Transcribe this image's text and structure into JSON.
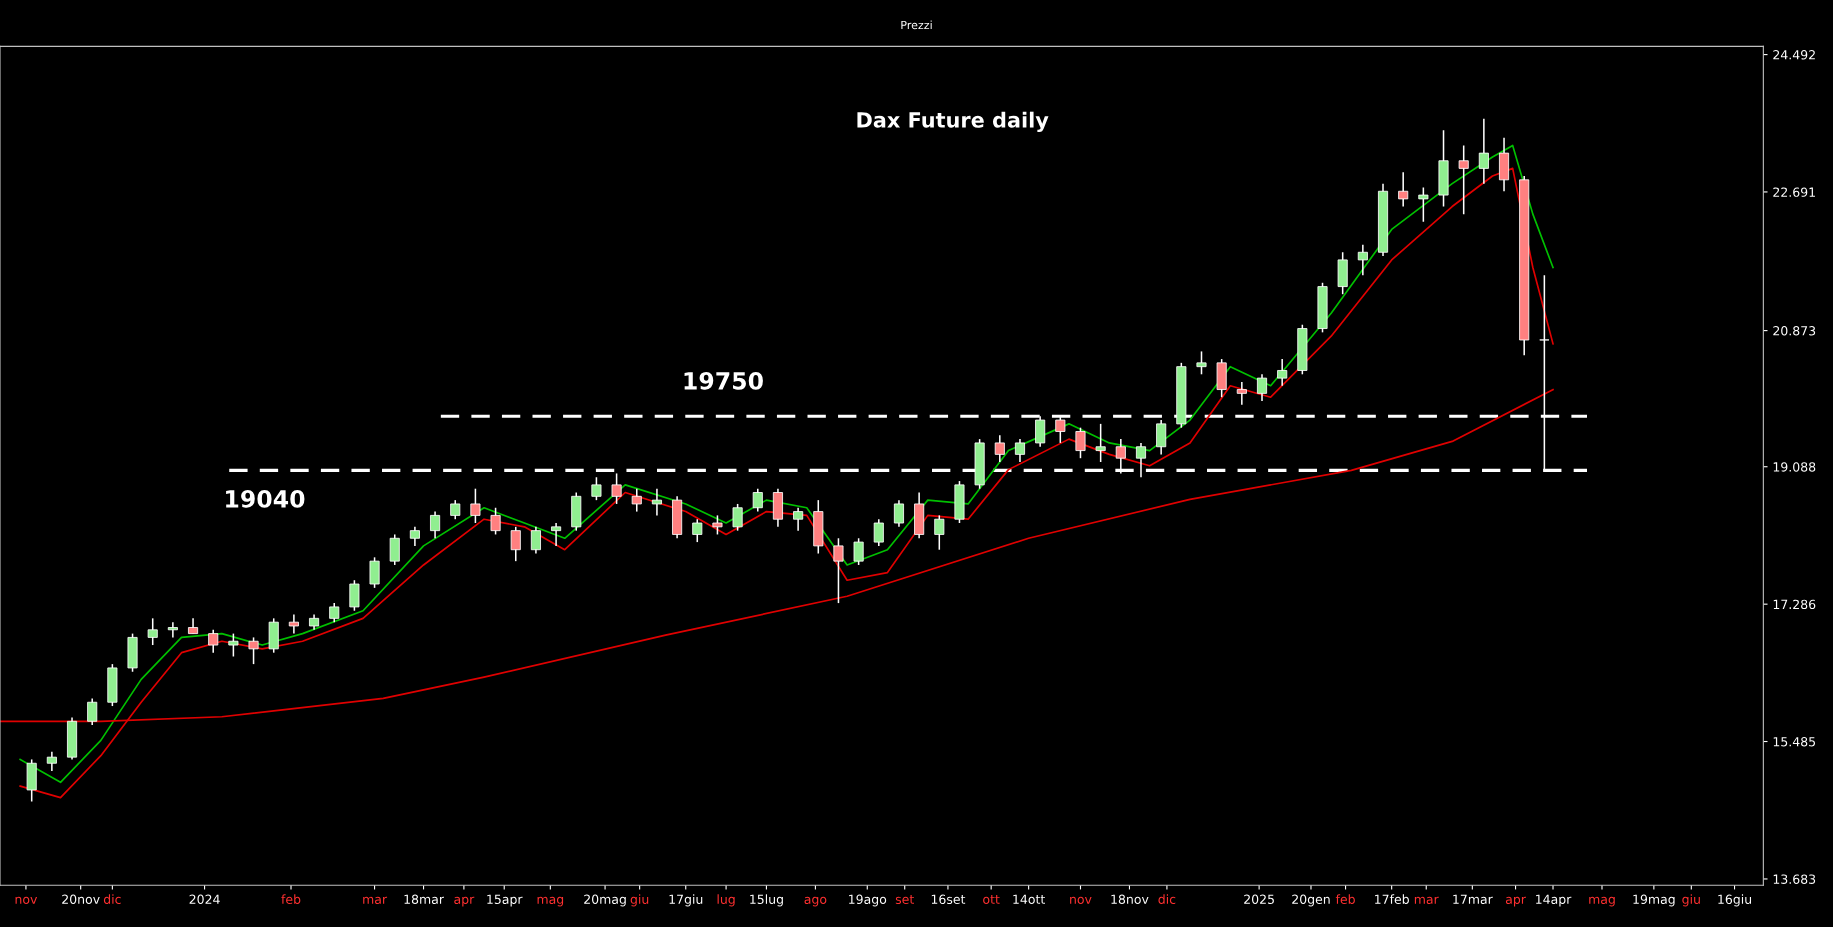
{
  "chart_data": {
    "type": "candlestick",
    "title": "Dax Future daily",
    "annotations": [
      "Prezzi"
    ],
    "x": [
      "2023-11-03",
      "2023-11-10",
      "2023-11-17",
      "2023-11-24",
      "2023-12-01",
      "2023-12-08",
      "2023-12-15",
      "2023-12-22",
      "2023-12-29",
      "2024-01-05",
      "2024-01-12",
      "2024-01-19",
      "2024-01-26",
      "2024-02-02",
      "2024-02-09",
      "2024-02-16",
      "2024-02-23",
      "2024-03-01",
      "2024-03-08",
      "2024-03-15",
      "2024-03-22",
      "2024-03-29",
      "2024-04-05",
      "2024-04-12",
      "2024-04-19",
      "2024-04-26",
      "2024-05-03",
      "2024-05-10",
      "2024-05-17",
      "2024-05-24",
      "2024-05-31",
      "2024-06-07",
      "2024-06-14",
      "2024-06-21",
      "2024-06-28",
      "2024-07-05",
      "2024-07-12",
      "2024-07-19",
      "2024-07-26",
      "2024-08-02",
      "2024-08-09",
      "2024-08-16",
      "2024-08-23",
      "2024-08-30",
      "2024-09-06",
      "2024-09-13",
      "2024-09-20",
      "2024-09-27",
      "2024-10-04",
      "2024-10-11",
      "2024-10-18",
      "2024-10-25",
      "2024-11-01",
      "2024-11-08",
      "2024-11-15",
      "2024-11-22",
      "2024-11-29",
      "2024-12-06",
      "2024-12-13",
      "2024-12-20",
      "2024-12-27",
      "2025-01-03",
      "2025-01-10",
      "2025-01-17",
      "2025-01-24",
      "2025-01-31",
      "2025-02-07",
      "2025-02-14",
      "2025-02-21",
      "2025-02-28",
      "2025-03-07",
      "2025-03-14",
      "2025-03-21",
      "2025-03-28",
      "2025-04-04",
      "2025-04-11"
    ],
    "ohlc": [
      [
        14850,
        15250,
        14700,
        15200
      ],
      [
        15200,
        15350,
        15100,
        15280
      ],
      [
        15280,
        15800,
        15250,
        15750
      ],
      [
        15750,
        16050,
        15700,
        16000
      ],
      [
        16000,
        16500,
        15950,
        16450
      ],
      [
        16450,
        16900,
        16400,
        16850
      ],
      [
        16850,
        17100,
        16750,
        16950
      ],
      [
        16950,
        17050,
        16850,
        16980
      ],
      [
        16980,
        17100,
        16900,
        16900
      ],
      [
        16900,
        16950,
        16650,
        16750
      ],
      [
        16750,
        16900,
        16600,
        16800
      ],
      [
        16800,
        16850,
        16500,
        16700
      ],
      [
        16700,
        17100,
        16650,
        17050
      ],
      [
        17050,
        17150,
        16900,
        17000
      ],
      [
        17000,
        17150,
        16950,
        17100
      ],
      [
        17100,
        17300,
        17050,
        17250
      ],
      [
        17250,
        17600,
        17200,
        17550
      ],
      [
        17550,
        17900,
        17500,
        17850
      ],
      [
        17850,
        18200,
        17800,
        18150
      ],
      [
        18150,
        18300,
        18050,
        18250
      ],
      [
        18250,
        18500,
        18150,
        18450
      ],
      [
        18450,
        18650,
        18400,
        18600
      ],
      [
        18600,
        18800,
        18350,
        18450
      ],
      [
        18450,
        18550,
        18200,
        18250
      ],
      [
        18250,
        18300,
        17850,
        18000
      ],
      [
        18000,
        18300,
        17950,
        18250
      ],
      [
        18250,
        18350,
        18050,
        18300
      ],
      [
        18300,
        18750,
        18250,
        18700
      ],
      [
        18700,
        18950,
        18650,
        18850
      ],
      [
        18850,
        19000,
        18600,
        18700
      ],
      [
        18700,
        18800,
        18500,
        18600
      ],
      [
        18600,
        18800,
        18450,
        18650
      ],
      [
        18650,
        18700,
        18150,
        18200
      ],
      [
        18200,
        18400,
        18100,
        18350
      ],
      [
        18350,
        18450,
        18200,
        18300
      ],
      [
        18300,
        18600,
        18250,
        18550
      ],
      [
        18550,
        18800,
        18500,
        18750
      ],
      [
        18750,
        18800,
        18300,
        18400
      ],
      [
        18400,
        18550,
        18250,
        18500
      ],
      [
        18500,
        18650,
        17950,
        18050
      ],
      [
        18050,
        18150,
        17300,
        17850
      ],
      [
        17850,
        18150,
        17800,
        18100
      ],
      [
        18100,
        18400,
        18050,
        18350
      ],
      [
        18350,
        18650,
        18300,
        18600
      ],
      [
        18600,
        18750,
        18150,
        18200
      ],
      [
        18200,
        18450,
        18000,
        18400
      ],
      [
        18400,
        18900,
        18350,
        18850
      ],
      [
        18850,
        19450,
        18800,
        19400
      ],
      [
        19400,
        19500,
        19150,
        19250
      ],
      [
        19250,
        19450,
        19150,
        19400
      ],
      [
        19400,
        19750,
        19350,
        19700
      ],
      [
        19700,
        19750,
        19400,
        19550
      ],
      [
        19550,
        19600,
        19200,
        19300
      ],
      [
        19300,
        19650,
        19150,
        19350
      ],
      [
        19350,
        19450,
        19000,
        19200
      ],
      [
        19200,
        19400,
        18950,
        19350
      ],
      [
        19350,
        19700,
        19250,
        19650
      ],
      [
        19650,
        20450,
        19600,
        20400
      ],
      [
        20400,
        20600,
        20300,
        20450
      ],
      [
        20450,
        20500,
        20000,
        20100
      ],
      [
        20100,
        20200,
        19900,
        20050
      ],
      [
        20050,
        20300,
        19950,
        20250
      ],
      [
        20250,
        20500,
        20150,
        20350
      ],
      [
        20350,
        20950,
        20300,
        20900
      ],
      [
        20900,
        21500,
        20850,
        21450
      ],
      [
        21450,
        21900,
        21350,
        21800
      ],
      [
        21800,
        22000,
        21600,
        21900
      ],
      [
        21900,
        22800,
        21850,
        22700
      ],
      [
        22700,
        22950,
        22500,
        22600
      ],
      [
        22600,
        22750,
        22300,
        22650
      ],
      [
        22650,
        23500,
        22500,
        23100
      ],
      [
        23100,
        23300,
        22400,
        23000
      ],
      [
        23000,
        23650,
        22800,
        23200
      ],
      [
        23200,
        23400,
        22700,
        22850
      ],
      [
        22850,
        22900,
        20550,
        20750
      ],
      [
        20750,
        21600,
        19040,
        20750
      ]
    ],
    "colors": [
      "#90ee90",
      "#90ee90",
      "#90ee90",
      "#90ee90",
      "#90ee90",
      "#90ee90",
      "#90ee90",
      "#90ee90",
      "#ff8080",
      "#ff8080",
      "#90ee90",
      "#ff8080",
      "#90ee90",
      "#ff8080",
      "#90ee90",
      "#90ee90",
      "#90ee90",
      "#90ee90",
      "#90ee90",
      "#90ee90",
      "#90ee90",
      "#90ee90",
      "#ff8080",
      "#ff8080",
      "#ff8080",
      "#90ee90",
      "#90ee90",
      "#90ee90",
      "#90ee90",
      "#ff8080",
      "#ff8080",
      "#90ee90",
      "#ff8080",
      "#90ee90",
      "#ff8080",
      "#90ee90",
      "#90ee90",
      "#ff8080",
      "#90ee90",
      "#ff8080",
      "#ff8080",
      "#90ee90",
      "#90ee90",
      "#90ee90",
      "#ff8080",
      "#90ee90",
      "#90ee90",
      "#90ee90",
      "#ff8080",
      "#90ee90",
      "#90ee90",
      "#ff8080",
      "#ff8080",
      "#90ee90",
      "#ff8080",
      "#90ee90",
      "#90ee90",
      "#90ee90",
      "#90ee90",
      "#ff8080",
      "#ff8080",
      "#90ee90",
      "#90ee90",
      "#90ee90",
      "#90ee90",
      "#90ee90",
      "#90ee90",
      "#90ee90",
      "#ff8080",
      "#90ee90",
      "#90ee90",
      "#ff8080",
      "#90ee90",
      "#ff8080",
      "#ff8080",
      "#90ee90"
    ],
    "series": [
      {
        "type": "line",
        "color": "#00c000",
        "x": [
          "2023-10-30",
          "2023-11-13",
          "2023-11-27",
          "2023-12-11",
          "2023-12-25",
          "2024-01-08",
          "2024-01-22",
          "2024-02-05",
          "2024-02-26",
          "2024-03-18",
          "2024-04-08",
          "2024-04-22",
          "2024-05-06",
          "2024-05-27",
          "2024-06-17",
          "2024-07-01",
          "2024-07-15",
          "2024-07-29",
          "2024-08-12",
          "2024-08-26",
          "2024-09-09",
          "2024-09-23",
          "2024-10-07",
          "2024-10-28",
          "2024-11-11",
          "2024-11-25",
          "2024-12-09",
          "2024-12-23",
          "2025-01-06",
          "2025-01-27",
          "2025-02-17",
          "2025-03-10",
          "2025-03-24",
          "2025-03-31",
          "2025-04-07",
          "2025-04-14"
        ],
        "values": [
          15250,
          14950,
          15500,
          16300,
          16850,
          16900,
          16750,
          16900,
          17200,
          18050,
          18550,
          18350,
          18150,
          18850,
          18600,
          18350,
          18650,
          18550,
          17800,
          18000,
          18650,
          18600,
          19300,
          19650,
          19400,
          19300,
          19700,
          20400,
          20150,
          21100,
          22200,
          22800,
          23150,
          23300,
          22400,
          21700
        ]
      },
      {
        "type": "line",
        "color": "#e00000",
        "x": [
          "2023-10-30",
          "2023-11-13",
          "2023-11-27",
          "2023-12-11",
          "2023-12-25",
          "2024-01-08",
          "2024-01-22",
          "2024-02-05",
          "2024-02-26",
          "2024-03-18",
          "2024-04-08",
          "2024-04-22",
          "2024-05-06",
          "2024-05-27",
          "2024-06-17",
          "2024-07-01",
          "2024-07-15",
          "2024-07-29",
          "2024-08-12",
          "2024-08-26",
          "2024-09-09",
          "2024-09-23",
          "2024-10-07",
          "2024-10-28",
          "2024-11-11",
          "2024-11-25",
          "2024-12-09",
          "2024-12-23",
          "2025-01-06",
          "2025-01-27",
          "2025-02-17",
          "2025-03-10",
          "2025-03-24",
          "2025-03-31",
          "2025-04-07",
          "2025-04-14"
        ],
        "values": [
          14900,
          14750,
          15300,
          16000,
          16650,
          16800,
          16700,
          16800,
          17100,
          17800,
          18400,
          18300,
          18000,
          18750,
          18500,
          18200,
          18500,
          18450,
          17600,
          17700,
          18450,
          18400,
          19050,
          19450,
          19250,
          19100,
          19400,
          20150,
          20000,
          20800,
          21800,
          22500,
          22900,
          23000,
          21700,
          20700
        ]
      },
      {
        "type": "line",
        "color": "#e00000",
        "x": [
          "2023-10-23",
          "2023-11-27",
          "2024-01-08",
          "2024-03-04",
          "2024-04-08",
          "2024-06-10",
          "2024-08-12",
          "2024-10-14",
          "2024-12-09",
          "2025-02-03",
          "2025-03-10",
          "2025-04-14"
        ],
        "values": [
          15750,
          15750,
          15810,
          16050,
          16330,
          16880,
          17390,
          18150,
          18660,
          19040,
          19420,
          20100
        ]
      }
    ],
    "ref_lines": [
      {
        "axis": "y",
        "value": 19750,
        "label": "19750",
        "color": "#ffffff",
        "line_style": "dashed"
      },
      {
        "axis": "y",
        "value": 19040,
        "label": "19040",
        "color": "#ffffff",
        "line_style": "dashed"
      }
    ],
    "xlim": [
      "2023-10-23",
      "2025-06-26"
    ],
    "xticks": [
      {
        "value": "2023-11-01",
        "label": "nov"
      },
      {
        "value": "2023-11-20",
        "label": "20nov"
      },
      {
        "value": "2023-12-01",
        "label": "dic"
      },
      {
        "value": "2024-01-02",
        "label": "2024"
      },
      {
        "value": "2024-02-01",
        "label": "feb"
      },
      {
        "value": "2024-03-01",
        "label": "mar"
      },
      {
        "value": "2024-03-18",
        "label": "18mar"
      },
      {
        "value": "2024-04-01",
        "label": "apr"
      },
      {
        "value": "2024-04-15",
        "label": "15apr"
      },
      {
        "value": "2024-05-01",
        "label": "mag"
      },
      {
        "value": "2024-05-20",
        "label": "20mag"
      },
      {
        "value": "2024-06-01",
        "label": "giu"
      },
      {
        "value": "2024-06-17",
        "label": "17giu"
      },
      {
        "value": "2024-07-01",
        "label": "lug"
      },
      {
        "value": "2024-07-15",
        "label": "15lug"
      },
      {
        "value": "2024-08-01",
        "label": "ago"
      },
      {
        "value": "2024-08-19",
        "label": "19ago"
      },
      {
        "value": "2024-09-01",
        "label": "set"
      },
      {
        "value": "2024-09-16",
        "label": "16set"
      },
      {
        "value": "2024-10-01",
        "label": "ott"
      },
      {
        "value": "2024-10-14",
        "label": "14ott"
      },
      {
        "value": "2024-11-01",
        "label": "nov"
      },
      {
        "value": "2024-11-18",
        "label": "18nov"
      },
      {
        "value": "2024-12-01",
        "label": "dic"
      },
      {
        "value": "2025-01-02",
        "label": "2025"
      },
      {
        "value": "2025-01-20",
        "label": "20gen"
      },
      {
        "value": "2025-02-01",
        "label": "feb"
      },
      {
        "value": "2025-02-17",
        "label": "17feb"
      },
      {
        "value": "2025-03-01",
        "label": "mar"
      },
      {
        "value": "2025-03-17",
        "label": "17mar"
      },
      {
        "value": "2025-04-01",
        "label": "apr"
      },
      {
        "value": "2025-04-14",
        "label": "14apr"
      },
      {
        "value": "2025-05-01",
        "label": "mag"
      },
      {
        "value": "2025-05-19",
        "label": "19mag"
      },
      {
        "value": "2025-06-01",
        "label": "giu"
      },
      {
        "value": "2025-06-16",
        "label": "16giu"
      }
    ],
    "ylim": [
      13600,
      24600
    ],
    "yticks": [
      {
        "value": 13683,
        "label": "13.683"
      },
      {
        "value": 15485,
        "label": "15.485"
      },
      {
        "value": 17286,
        "label": "17.286"
      },
      {
        "value": 19088,
        "label": "19.088"
      },
      {
        "value": 20873,
        "label": "20.873"
      },
      {
        "value": 22691,
        "label": "22.691"
      },
      {
        "value": 24492,
        "label": "24.492"
      }
    ],
    "grid": false,
    "legend": false
  }
}
